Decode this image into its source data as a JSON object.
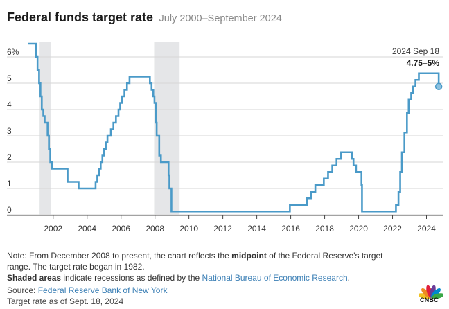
{
  "header": {
    "title": "Federal funds target rate",
    "subtitle": "July 2000–September 2024"
  },
  "chart_data": {
    "type": "line",
    "title": "Federal funds target rate",
    "subtitle": "July 2000–September 2024",
    "xlim": [
      2000.5,
      2025.0
    ],
    "ylim": [
      0,
      6.5
    ],
    "x_ticks": [
      2002,
      2004,
      2006,
      2008,
      2010,
      2012,
      2014,
      2016,
      2018,
      2020,
      2022,
      2024
    ],
    "x_tick_labels": [
      "2002",
      "2004",
      "2006",
      "2008",
      "2010",
      "2012",
      "2014",
      "2016",
      "2018",
      "2020",
      "2022",
      "2024"
    ],
    "y_ticks": [
      0,
      1,
      2,
      3,
      4,
      5,
      6
    ],
    "y_tick_labels": [
      "0",
      "1",
      "2",
      "3",
      "4",
      "5",
      "6%"
    ],
    "grid": "horizontal",
    "line_color": "#4a9ac8",
    "recession_color": "#e5e6e8",
    "recessions": [
      [
        2001.2,
        2001.85
      ],
      [
        2007.95,
        2009.45
      ]
    ],
    "series": [
      {
        "step": true,
        "points": [
          [
            2000.5,
            6.5
          ],
          [
            2001.0,
            6.0
          ],
          [
            2001.08,
            5.5
          ],
          [
            2001.17,
            5.0
          ],
          [
            2001.25,
            4.5
          ],
          [
            2001.33,
            4.0
          ],
          [
            2001.42,
            3.75
          ],
          [
            2001.5,
            3.5
          ],
          [
            2001.67,
            3.0
          ],
          [
            2001.75,
            2.5
          ],
          [
            2001.83,
            2.0
          ],
          [
            2001.92,
            1.75
          ],
          [
            2002.85,
            1.25
          ],
          [
            2003.5,
            1.0
          ],
          [
            2004.5,
            1.25
          ],
          [
            2004.6,
            1.5
          ],
          [
            2004.7,
            1.75
          ],
          [
            2004.8,
            2.0
          ],
          [
            2004.9,
            2.25
          ],
          [
            2005.0,
            2.5
          ],
          [
            2005.1,
            2.75
          ],
          [
            2005.2,
            3.0
          ],
          [
            2005.4,
            3.25
          ],
          [
            2005.55,
            3.5
          ],
          [
            2005.7,
            3.75
          ],
          [
            2005.85,
            4.0
          ],
          [
            2005.95,
            4.25
          ],
          [
            2006.05,
            4.5
          ],
          [
            2006.2,
            4.75
          ],
          [
            2006.35,
            5.0
          ],
          [
            2006.5,
            5.25
          ],
          [
            2007.7,
            5.0
          ],
          [
            2007.8,
            4.75
          ],
          [
            2007.9,
            4.5
          ],
          [
            2007.97,
            4.25
          ],
          [
            2008.05,
            3.5
          ],
          [
            2008.1,
            3.0
          ],
          [
            2008.25,
            2.25
          ],
          [
            2008.35,
            2.0
          ],
          [
            2008.8,
            1.5
          ],
          [
            2008.85,
            1.0
          ],
          [
            2008.97,
            0.125
          ],
          [
            2015.95,
            0.375
          ],
          [
            2016.95,
            0.625
          ],
          [
            2017.2,
            0.875
          ],
          [
            2017.45,
            1.125
          ],
          [
            2017.95,
            1.375
          ],
          [
            2018.2,
            1.625
          ],
          [
            2018.45,
            1.875
          ],
          [
            2018.7,
            2.125
          ],
          [
            2018.97,
            2.375
          ],
          [
            2019.6,
            2.125
          ],
          [
            2019.7,
            1.875
          ],
          [
            2019.85,
            1.625
          ],
          [
            2020.17,
            1.125
          ],
          [
            2020.2,
            0.125
          ],
          [
            2022.2,
            0.375
          ],
          [
            2022.35,
            0.875
          ],
          [
            2022.45,
            1.625
          ],
          [
            2022.55,
            2.375
          ],
          [
            2022.7,
            3.125
          ],
          [
            2022.85,
            3.875
          ],
          [
            2022.95,
            4.375
          ],
          [
            2023.1,
            4.625
          ],
          [
            2023.2,
            4.875
          ],
          [
            2023.35,
            5.125
          ],
          [
            2023.55,
            5.375
          ],
          [
            2024.72,
            4.875
          ]
        ],
        "end_x": 2024.72
      }
    ],
    "annotation": {
      "date": "2024 Sep 18",
      "value": "4.75–5%",
      "x": 2024.72,
      "y": 4.875
    }
  },
  "notes": {
    "line1_prefix": "Note: From December 2008 to present, the chart reflects the ",
    "line1_bold": "midpoint",
    "line1_suffix": " of the Federal Reserve's target",
    "line2": "range. The target rate began in 1982.",
    "line3_bold": "Shaded areas",
    "line3_mid": " indicate recessions as defined by the ",
    "line3_link": "National Bureau of Economic Research",
    "line3_end": ".",
    "source_label": "Source: ",
    "source_link": "Federal Reserve Bank of New York",
    "asof": "Target rate as of Sept. 18, 2024"
  },
  "logo": {
    "name": "peacock-icon",
    "text": "CNBC",
    "colors": [
      "#f2c324",
      "#ef8a22",
      "#e01e3c",
      "#6a3d9a",
      "#0089cf",
      "#3aa847"
    ]
  }
}
